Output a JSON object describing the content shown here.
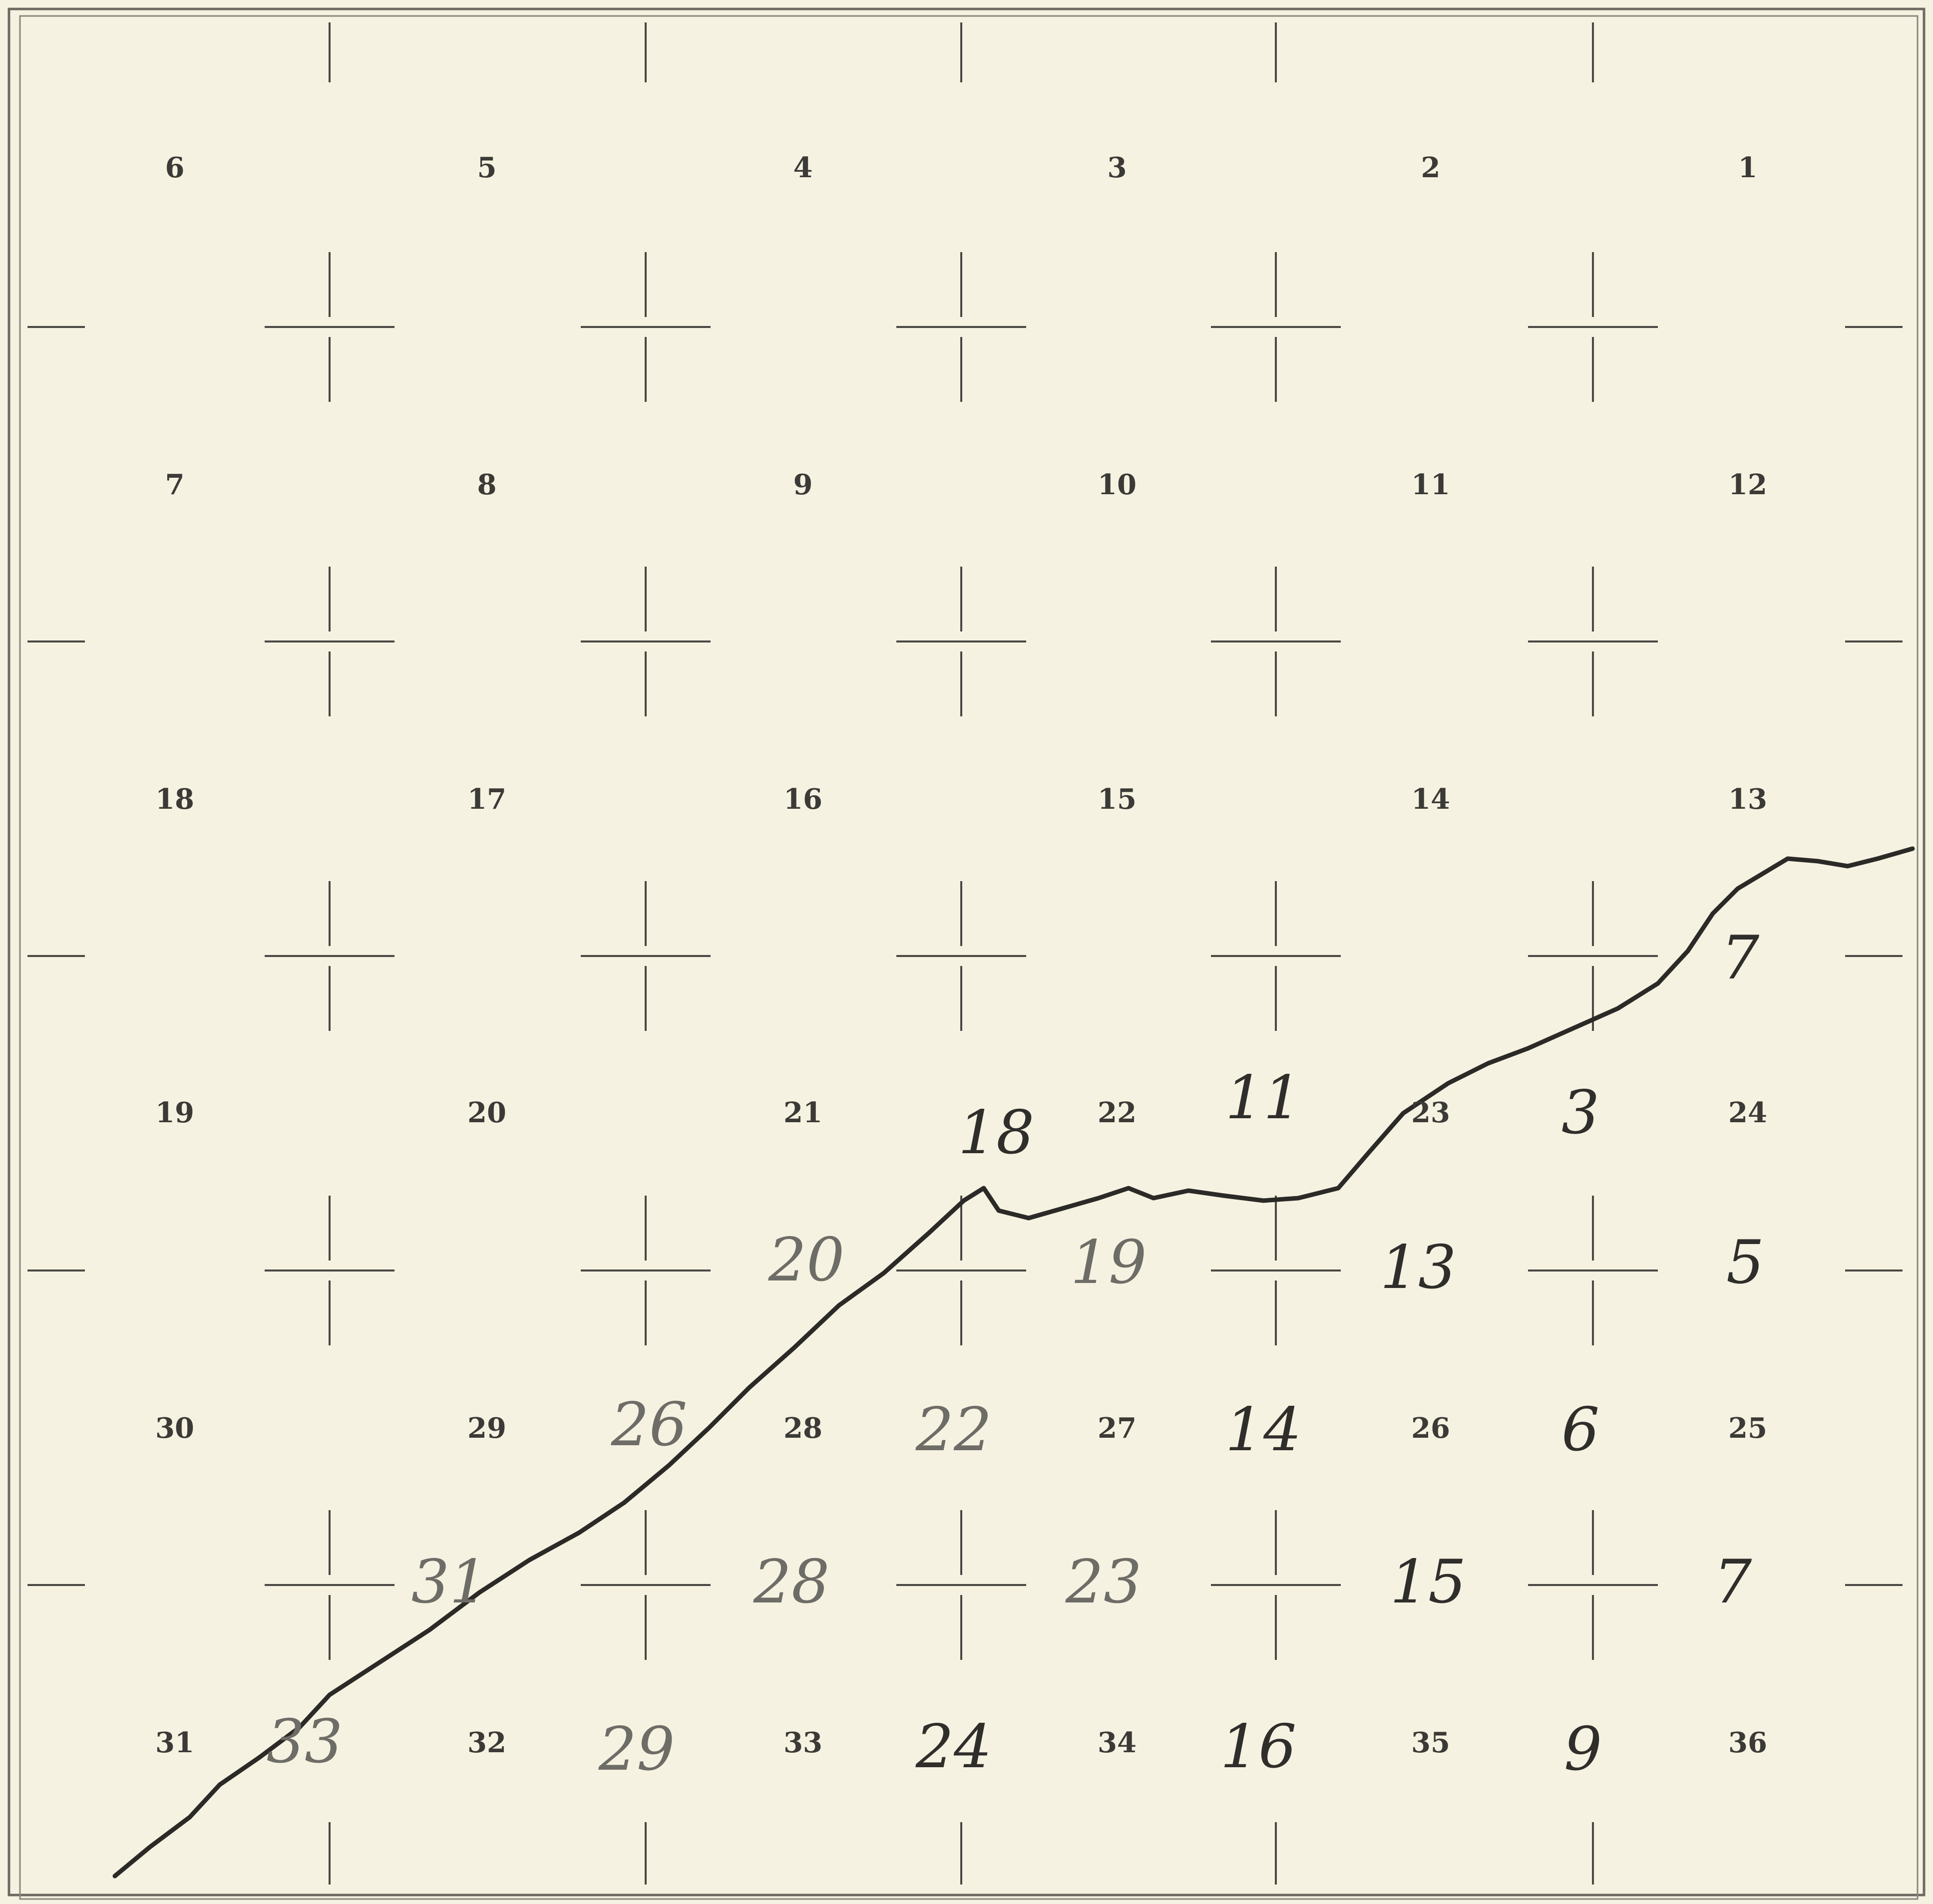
{
  "map": {
    "printed_sections": [
      [
        "6",
        "5",
        "4",
        "3",
        "2",
        "1"
      ],
      [
        "7",
        "8",
        "9",
        "10",
        "11",
        "12"
      ],
      [
        "18",
        "17",
        "16",
        "15",
        "14",
        "13"
      ],
      [
        "19",
        "20",
        "21",
        "22",
        "23",
        "24"
      ],
      [
        "30",
        "29",
        "28",
        "27",
        "26",
        "25"
      ],
      [
        "31",
        "32",
        "33",
        "34",
        "35",
        "36"
      ]
    ],
    "handwritten_numbers": [
      "18",
      "11",
      "3",
      "7",
      "20",
      "19",
      "13",
      "5",
      "26",
      "22",
      "14",
      "6",
      "31",
      "28",
      "23",
      "15",
      "7",
      "33",
      "29",
      "24",
      "16",
      "9"
    ]
  }
}
